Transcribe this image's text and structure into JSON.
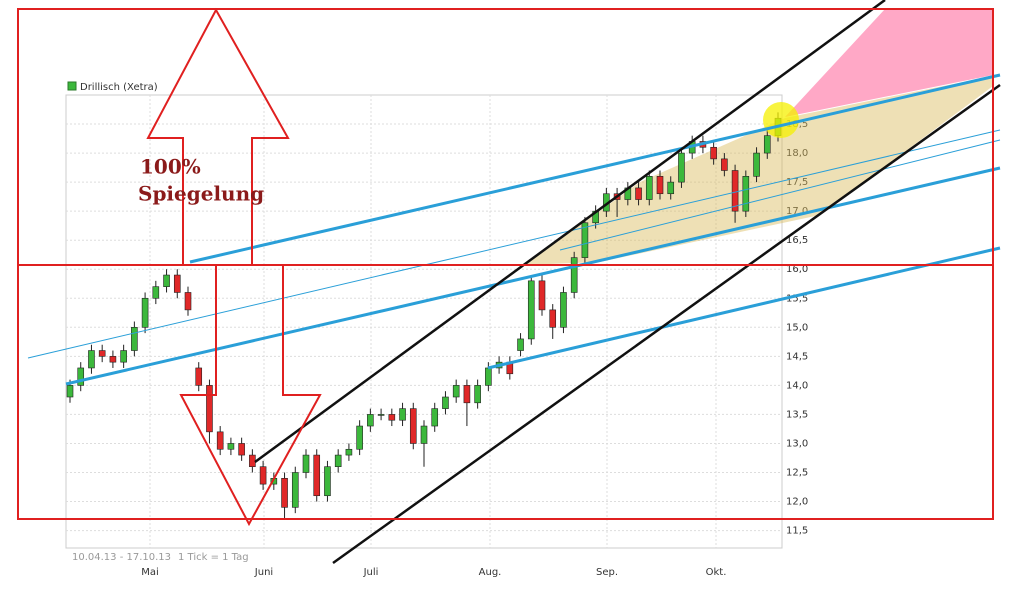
{
  "chart_data": {
    "type": "candlestick",
    "title": "Drillisch (Xetra)",
    "note_line1": "100%",
    "note_line2": "Spiegelung",
    "footer_range": "10.04.13 - 17.10.13",
    "footer_tick": "1 Tick = 1 Tag",
    "x_labels": [
      "Mai",
      "Juni",
      "Juli",
      "Aug.",
      "Sep.",
      "Okt."
    ],
    "ylim": [
      11.2,
      19.0
    ],
    "yticks": [
      {
        "value": 11.5,
        "label": "11,5"
      },
      {
        "value": 12,
        "label": "12,0"
      },
      {
        "value": 12.5,
        "label": "12,5"
      },
      {
        "value": 13,
        "label": "13,0"
      },
      {
        "value": 13.5,
        "label": "13,5"
      },
      {
        "value": 14,
        "label": "14,0"
      },
      {
        "value": 14.5,
        "label": "14,5"
      },
      {
        "value": 15,
        "label": "15,0"
      },
      {
        "value": 15.5,
        "label": "15,5"
      },
      {
        "value": 16,
        "label": "16,0"
      },
      {
        "value": 16.5,
        "label": "16,5"
      },
      {
        "value": 17,
        "label": "17,0"
      },
      {
        "value": 17.5,
        "label": "17,5"
      },
      {
        "value": 18,
        "label": "18,0"
      },
      {
        "value": 18.5,
        "label": "18,5"
      }
    ],
    "grid": true,
    "up_color": "#3cb83c",
    "down_color": "#e02828",
    "open": [
      13.8,
      14.0,
      14.3,
      14.6,
      14.5,
      14.4,
      14.6,
      15.0,
      15.5,
      15.7,
      15.9,
      15.6,
      14.3,
      14.0,
      13.2,
      12.9,
      13.0,
      12.8,
      12.6,
      12.3,
      12.4,
      11.9,
      12.5,
      12.8,
      12.1,
      12.6,
      12.8,
      12.9,
      13.3,
      13.5,
      13.5,
      13.4,
      13.6,
      13.0,
      13.3,
      13.6,
      13.8,
      14.0,
      13.7,
      14.0,
      14.3,
      14.4,
      14.6,
      14.8,
      15.8,
      15.3,
      15.0,
      15.6,
      16.2,
      16.8,
      17.0,
      17.3,
      17.2,
      17.4,
      17.2,
      17.6,
      17.3,
      17.5,
      18.0,
      18.2,
      18.1,
      17.9,
      17.7,
      17.0,
      17.6,
      18.0,
      18.3
    ],
    "high": [
      14.1,
      14.4,
      14.7,
      14.7,
      14.6,
      14.7,
      15.1,
      15.6,
      15.8,
      16.0,
      16.0,
      15.7,
      14.4,
      14.1,
      13.3,
      13.1,
      13.1,
      12.9,
      12.7,
      12.5,
      12.5,
      12.6,
      12.9,
      12.9,
      12.7,
      12.9,
      13.0,
      13.4,
      13.6,
      13.6,
      13.6,
      13.7,
      13.7,
      13.4,
      13.7,
      13.9,
      14.1,
      14.1,
      14.1,
      14.4,
      14.5,
      14.5,
      14.9,
      15.9,
      15.9,
      15.4,
      15.7,
      16.3,
      16.9,
      17.1,
      17.4,
      17.4,
      17.5,
      17.5,
      17.7,
      17.7,
      17.6,
      18.1,
      18.3,
      18.3,
      18.2,
      18.0,
      17.8,
      17.7,
      18.1,
      18.4,
      18.7
    ],
    "low": [
      13.7,
      13.9,
      14.2,
      14.4,
      14.3,
      14.3,
      14.5,
      14.9,
      15.4,
      15.6,
      15.5,
      15.2,
      13.9,
      13.0,
      12.8,
      12.8,
      12.7,
      12.5,
      12.2,
      12.2,
      11.7,
      11.8,
      12.4,
      12.0,
      12.0,
      12.5,
      12.7,
      12.8,
      13.2,
      13.4,
      13.3,
      13.3,
      12.9,
      12.6,
      13.2,
      13.5,
      13.7,
      13.3,
      13.6,
      13.9,
      14.2,
      14.1,
      14.5,
      14.7,
      15.2,
      14.8,
      14.9,
      15.5,
      16.1,
      16.7,
      16.9,
      16.9,
      17.1,
      17.1,
      17.1,
      17.2,
      17.2,
      17.4,
      17.9,
      18.0,
      17.8,
      17.6,
      16.8,
      16.9,
      17.5,
      17.9,
      18.2
    ],
    "close": [
      14.0,
      14.3,
      14.6,
      14.5,
      14.4,
      14.6,
      15.0,
      15.5,
      15.7,
      15.9,
      15.6,
      15.3,
      14.0,
      13.2,
      12.9,
      13.0,
      12.8,
      12.6,
      12.3,
      12.4,
      11.9,
      12.5,
      12.8,
      12.1,
      12.6,
      12.8,
      12.9,
      13.3,
      13.5,
      13.5,
      13.4,
      13.6,
      13.0,
      13.3,
      13.6,
      13.8,
      14.0,
      13.7,
      14.0,
      14.3,
      14.4,
      14.2,
      14.8,
      15.8,
      15.3,
      15.0,
      15.6,
      16.2,
      16.8,
      17.0,
      17.3,
      17.2,
      17.4,
      17.2,
      17.6,
      17.3,
      17.5,
      18.0,
      18.2,
      18.1,
      17.9,
      17.7,
      17.0,
      17.6,
      18.0,
      18.3,
      18.6
    ]
  }
}
